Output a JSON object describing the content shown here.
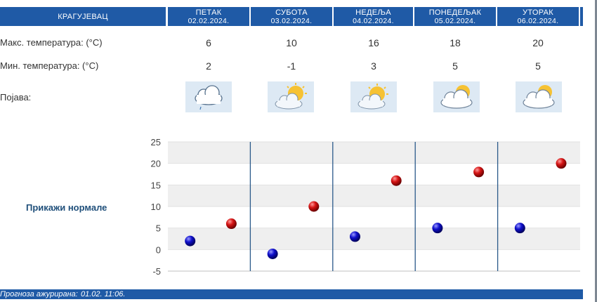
{
  "city": "КРАГУЈЕВАЦ",
  "days": [
    {
      "name": "ПЕТАК",
      "date": "02.02.2024.",
      "max": "6",
      "min": "2",
      "icon": "cloud-rain-icon"
    },
    {
      "name": "СУБОТА",
      "date": "03.02.2024.",
      "max": "10",
      "min": "-1",
      "icon": "partly-cloudy-icon"
    },
    {
      "name": "НЕДЕЉА",
      "date": "04.02.2024.",
      "max": "16",
      "min": "3",
      "icon": "partly-cloudy-icon"
    },
    {
      "name": "ПОНЕДЕЉАК",
      "date": "05.02.2024.",
      "max": "18",
      "min": "5",
      "icon": "mostly-cloudy-icon"
    },
    {
      "name": "УТОРАК",
      "date": "06.02.2024.",
      "max": "20",
      "min": "5",
      "icon": "mostly-cloudy-icon"
    }
  ],
  "labels": {
    "max_temp": "Макс. температура: (°C)",
    "min_temp": "Мин. температура: (°C)",
    "phenomenon": "Појава:",
    "show_normals": "Прикажи нормале"
  },
  "footer": {
    "label": "Прогноза ажурирана:",
    "value": "01.02. 11:06."
  },
  "colors": {
    "header_bg": "#1f5aa6",
    "max_marker": "#cc0000",
    "min_marker": "#0000bb"
  },
  "chart_data": {
    "type": "scatter",
    "categories": [
      "ПЕТАК",
      "СУБОТА",
      "НЕДЕЉА",
      "ПОНЕДЕЉАК",
      "УТОРАК"
    ],
    "series": [
      {
        "values": [
          2,
          -1,
          3,
          5,
          5
        ],
        "color": "#0000bb"
      },
      {
        "values": [
          6,
          10,
          16,
          18,
          20
        ],
        "color": "#cc0000"
      }
    ],
    "yticks": [
      -5,
      0,
      5,
      10,
      15,
      20,
      25
    ],
    "ylim": [
      -5,
      25
    ],
    "grid": true
  }
}
